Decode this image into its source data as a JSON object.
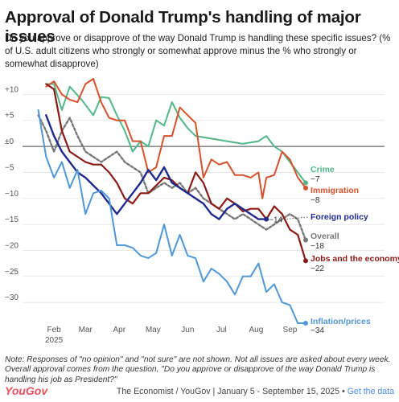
{
  "title": "Approval of Donald Trump's handling of major issues",
  "subtitle": "Do you approve or disapprove of the way Donald Trump is handling these specific issues? (% of U.S. adult citizens who strongly or somewhat approve minus the % who strongly or somewhat disapprove)",
  "note": "Note: Responses of \"no opinion\" and \"not sure\" are not shown. Not all issues are asked about every week. Overall approval comes from the question, \"Do you approve or disapprove of the way Donald Trump is handling his job as President?\"",
  "logo": "YouGov",
  "source": "The Economist / YouGov | January 5 - September 15, 2025 •",
  "source_link": "Get the data",
  "chart_data": {
    "type": "line",
    "ylim": [
      -34,
      13
    ],
    "xlim": [
      0,
      36
    ],
    "y_ticks": [
      "+10",
      "+5",
      "±0",
      "−5",
      "−10",
      "−15",
      "−20",
      "−25",
      "−30"
    ],
    "y_tick_values": [
      10,
      5,
      0,
      -5,
      -10,
      -15,
      -20,
      -25,
      -30
    ],
    "x_ticks": [
      {
        "label": "Feb",
        "sub": "2025",
        "x": 4
      },
      {
        "label": "Mar",
        "x": 8
      },
      {
        "label": "Apr",
        "x": 12.3
      },
      {
        "label": "May",
        "x": 16.6
      },
      {
        "label": "Jun",
        "x": 21
      },
      {
        "label": "Jul",
        "x": 25.3
      },
      {
        "label": "Aug",
        "x": 29.7
      },
      {
        "label": "Sep",
        "x": 34
      }
    ],
    "series": [
      {
        "name": "Crime",
        "value_label": "−7",
        "color": "#52b788",
        "width": 2,
        "points": [
          [
            3,
            12
          ],
          [
            4,
            12
          ],
          [
            5,
            7
          ],
          [
            6,
            11.5
          ],
          [
            7.5,
            9
          ],
          [
            9,
            6
          ],
          [
            10,
            9.5
          ],
          [
            11,
            9.3
          ],
          [
            12,
            6
          ],
          [
            13,
            3
          ],
          [
            14,
            -1
          ],
          [
            15,
            1
          ],
          [
            16,
            0
          ],
          [
            17,
            5
          ],
          [
            18,
            4
          ],
          [
            19,
            8.5
          ],
          [
            20,
            5.5
          ],
          [
            21,
            3.5
          ],
          [
            22,
            2
          ],
          [
            24,
            1.5
          ],
          [
            26,
            1
          ],
          [
            28,
            0.5
          ],
          [
            30,
            1
          ],
          [
            31,
            2
          ],
          [
            32,
            0
          ],
          [
            33,
            -1
          ],
          [
            34,
            -3
          ],
          [
            35,
            -5
          ],
          [
            36,
            -7
          ]
        ]
      },
      {
        "name": "Immigration",
        "value_label": "−8",
        "color": "#d6512b",
        "width": 2,
        "points": [
          [
            3,
            11.5
          ],
          [
            4,
            12.5
          ],
          [
            5,
            10
          ],
          [
            6,
            9
          ],
          [
            7,
            8.5
          ],
          [
            8,
            12
          ],
          [
            9,
            13
          ],
          [
            10,
            8.5
          ],
          [
            11,
            5.5
          ],
          [
            12,
            5
          ],
          [
            13,
            5
          ],
          [
            14,
            1
          ],
          [
            15,
            1
          ],
          [
            16,
            -5
          ],
          [
            17,
            -4
          ],
          [
            18,
            2
          ],
          [
            19,
            2
          ],
          [
            20,
            7.5
          ],
          [
            21,
            6
          ],
          [
            22,
            4.5
          ],
          [
            23,
            -6
          ],
          [
            24,
            -2.5
          ],
          [
            25,
            -3.5
          ],
          [
            26,
            -3
          ],
          [
            27,
            -5.5
          ],
          [
            28,
            -5.5
          ],
          [
            29,
            -6
          ],
          [
            30,
            -5
          ],
          [
            30.5,
            -10
          ],
          [
            31,
            -6
          ],
          [
            32,
            -5.5
          ],
          [
            33,
            -1
          ],
          [
            34,
            -2.5
          ],
          [
            35,
            -6
          ],
          [
            36,
            -8
          ]
        ]
      },
      {
        "name": "Overall",
        "value_label": "−18",
        "color": "#777777",
        "width": 2.4,
        "dash": "3,2.5",
        "points": [
          [
            2,
            6
          ],
          [
            3,
            3
          ],
          [
            4,
            -1
          ],
          [
            5,
            3
          ],
          [
            6,
            5.5
          ],
          [
            7,
            2
          ],
          [
            8,
            -1
          ],
          [
            9,
            -2
          ],
          [
            10,
            -3
          ],
          [
            11,
            -2
          ],
          [
            12,
            -1
          ],
          [
            13,
            -3
          ],
          [
            14,
            -4
          ],
          [
            15,
            -5
          ],
          [
            16,
            -9
          ],
          [
            17,
            -8
          ],
          [
            18,
            -7
          ],
          [
            19,
            -8
          ],
          [
            20,
            -7
          ],
          [
            21,
            -9
          ],
          [
            22,
            -8
          ],
          [
            23,
            -10
          ],
          [
            24,
            -11
          ],
          [
            25,
            -12
          ],
          [
            26,
            -13
          ],
          [
            27,
            -14
          ],
          [
            28,
            -13
          ],
          [
            29,
            -14
          ],
          [
            30,
            -15
          ],
          [
            31,
            -16
          ],
          [
            32,
            -15
          ],
          [
            33,
            -14
          ],
          [
            34,
            -13
          ],
          [
            35,
            -14
          ],
          [
            36,
            -18
          ]
        ]
      },
      {
        "name": "Jobs and the economy",
        "value_label": "−22",
        "color": "#8b1a16",
        "width": 2.2,
        "points": [
          [
            3,
            12
          ],
          [
            4,
            11
          ],
          [
            5,
            3
          ],
          [
            6,
            -1
          ],
          [
            7,
            -2
          ],
          [
            8,
            -3
          ],
          [
            9,
            -3.5
          ],
          [
            10,
            -3.5
          ],
          [
            11,
            -5
          ],
          [
            12,
            -7
          ],
          [
            13,
            -10
          ],
          [
            14,
            -11
          ],
          [
            15,
            -9
          ],
          [
            16,
            -9
          ],
          [
            17,
            -7.5
          ],
          [
            18,
            -6
          ],
          [
            19,
            -6.5
          ],
          [
            20,
            -8
          ],
          [
            21,
            -9
          ],
          [
            22,
            -5
          ],
          [
            23,
            -7
          ],
          [
            24,
            -11
          ],
          [
            25,
            -12
          ],
          [
            26,
            -10
          ],
          [
            27,
            -11
          ],
          [
            28,
            -12.5
          ],
          [
            29,
            -12
          ],
          [
            30,
            -12
          ],
          [
            31,
            -14
          ],
          [
            32,
            -11.5
          ],
          [
            33,
            -13
          ],
          [
            34,
            -16
          ],
          [
            35,
            -17
          ],
          [
            36,
            -22
          ]
        ]
      },
      {
        "name": "Foreign policy",
        "value_label": "−14",
        "color": "#1e2a8e",
        "width": 2.4,
        "points": [
          [
            3,
            6
          ],
          [
            4,
            2
          ],
          [
            5,
            -1
          ],
          [
            6,
            -3
          ],
          [
            7,
            -5
          ],
          [
            8,
            -6
          ],
          [
            9,
            -7.5
          ],
          [
            10,
            -9
          ],
          [
            11,
            -11
          ],
          [
            12,
            -13
          ],
          [
            13,
            -11
          ],
          [
            14,
            -9
          ],
          [
            15,
            -7
          ],
          [
            16,
            -4.5
          ],
          [
            17,
            -6.5
          ],
          [
            18,
            -4
          ],
          [
            19,
            -7
          ],
          [
            20,
            -8
          ],
          [
            21,
            -9
          ],
          [
            22,
            -10
          ],
          [
            23,
            -11
          ],
          [
            24,
            -13
          ],
          [
            25,
            -14
          ],
          [
            26,
            -12
          ],
          [
            27,
            -11
          ],
          [
            28,
            -12
          ],
          [
            29,
            -13
          ],
          [
            30,
            -14
          ],
          [
            31,
            -14
          ]
        ]
      },
      {
        "name": "Inflation/prices",
        "value_label": "−34",
        "color": "#4f97d8",
        "width": 2,
        "points": [
          [
            2,
            7
          ],
          [
            3,
            -2
          ],
          [
            4,
            -6
          ],
          [
            5,
            -3
          ],
          [
            6,
            -8
          ],
          [
            7,
            -4.5
          ],
          [
            8,
            -13
          ],
          [
            9,
            -9
          ],
          [
            10,
            -8.5
          ],
          [
            11,
            -10
          ],
          [
            12,
            -19
          ],
          [
            13,
            -19
          ],
          [
            14,
            -19.5
          ],
          [
            15,
            -21
          ],
          [
            16,
            -21.5
          ],
          [
            17,
            -20.5
          ],
          [
            18,
            -15
          ],
          [
            19,
            -21
          ],
          [
            20,
            -17
          ],
          [
            21,
            -21
          ],
          [
            22,
            -21.5
          ],
          [
            23,
            -26
          ],
          [
            24,
            -23.5
          ],
          [
            25,
            -24.5
          ],
          [
            26,
            -26
          ],
          [
            27,
            -28.5
          ],
          [
            28,
            -25
          ],
          [
            29,
            -25
          ],
          [
            30,
            -22.5
          ],
          [
            31,
            -28
          ],
          [
            32,
            -26.5
          ],
          [
            33,
            -30
          ],
          [
            34,
            -30.5
          ],
          [
            35,
            -34
          ],
          [
            36,
            -34
          ]
        ]
      }
    ],
    "annotation": "−14"
  }
}
